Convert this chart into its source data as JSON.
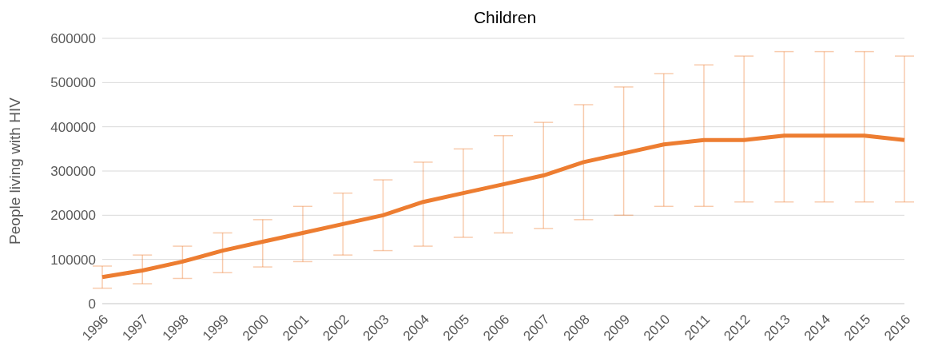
{
  "chart_data": {
    "type": "line",
    "title": "Children",
    "ylabel": "People living with HIV",
    "categories": [
      "1996",
      "1997",
      "1998",
      "1999",
      "2000",
      "2001",
      "2002",
      "2003",
      "2004",
      "2005",
      "2006",
      "2007",
      "2008",
      "2009",
      "2010",
      "2011",
      "2012",
      "2013",
      "2014",
      "2015",
      "2016"
    ],
    "series": [
      {
        "color": "#ed7d31",
        "values": [
          60000,
          75000,
          95000,
          120000,
          140000,
          160000,
          180000,
          200000,
          230000,
          250000,
          270000,
          290000,
          320000,
          340000,
          360000,
          370000,
          370000,
          380000,
          380000,
          380000,
          370000
        ],
        "errors": [
          [
            35000,
            85000
          ],
          [
            45000,
            110000
          ],
          [
            57000,
            130000
          ],
          [
            70000,
            160000
          ],
          [
            83000,
            190000
          ],
          [
            95000,
            220000
          ],
          [
            110000,
            250000
          ],
          [
            120000,
            280000
          ],
          [
            130000,
            320000
          ],
          [
            150000,
            350000
          ],
          [
            160000,
            380000
          ],
          [
            170000,
            410000
          ],
          [
            190000,
            450000
          ],
          [
            200000,
            490000
          ],
          [
            220000,
            520000
          ],
          [
            220000,
            540000
          ],
          [
            230000,
            560000
          ],
          [
            230000,
            570000
          ],
          [
            230000,
            570000
          ],
          [
            230000,
            570000
          ],
          [
            230000,
            560000
          ]
        ]
      }
    ],
    "ylim": [
      0,
      600000
    ],
    "yticks": [
      0,
      100000,
      200000,
      300000,
      400000,
      500000,
      600000
    ],
    "grid": "y",
    "legend": false,
    "marker": "none",
    "line_style": "solid"
  }
}
